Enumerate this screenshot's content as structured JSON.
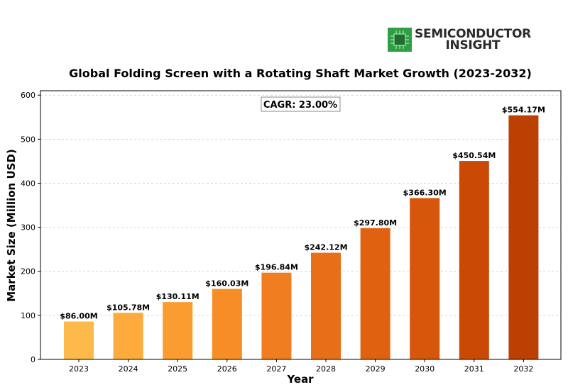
{
  "logo": {
    "line1": "SEMICONDUCTOR",
    "line2": "INSIGHT",
    "icon": "chip-icon",
    "icon_color": "#2ea043"
  },
  "annotation": {
    "cagr": "CAGR: 23.00%"
  },
  "chart_data": {
    "type": "bar",
    "title": "Global Folding Screen with a Rotating Shaft Market Growth (2023-2032)",
    "xlabel": "Year",
    "ylabel": "Market Size (Million USD)",
    "categories": [
      "2023",
      "2024",
      "2025",
      "2026",
      "2027",
      "2028",
      "2029",
      "2030",
      "2031",
      "2032"
    ],
    "values": [
      86.0,
      105.78,
      130.11,
      160.03,
      196.84,
      242.12,
      297.8,
      366.3,
      450.54,
      554.17
    ],
    "data_labels": [
      "$86.00M",
      "$105.78M",
      "$130.11M",
      "$160.03M",
      "$196.84M",
      "$242.12M",
      "$297.80M",
      "$366.30M",
      "$450.54M",
      "$554.17M"
    ],
    "ylim": [
      0,
      610
    ],
    "yticks": [
      0,
      100,
      200,
      300,
      400,
      500,
      600
    ],
    "grid": true,
    "colors": [
      "#fdb94a",
      "#fcab3c",
      "#fa9c30",
      "#f68d27",
      "#f07e20",
      "#e86f18",
      "#e06211",
      "#d6560b",
      "#ca4a05",
      "#bc4002"
    ]
  }
}
